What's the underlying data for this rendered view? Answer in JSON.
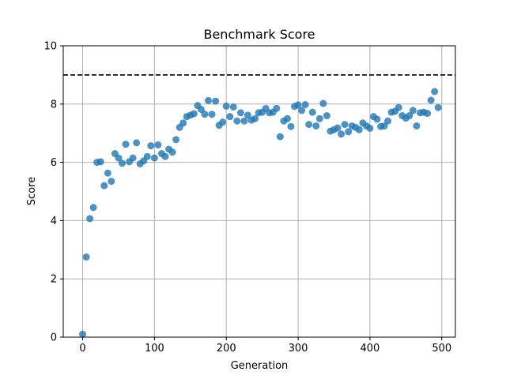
{
  "chart_data": {
    "type": "scatter",
    "title": "Benchmark Score",
    "xlabel": "Generation",
    "ylabel": "Score",
    "xlim": [
      -27,
      519
    ],
    "ylim": [
      0,
      10
    ],
    "xticks": [
      0,
      100,
      200,
      300,
      400,
      500
    ],
    "yticks": [
      0,
      2,
      4,
      6,
      8,
      10
    ],
    "grid": true,
    "reference_line": {
      "y": 9,
      "style": "dashed",
      "color": "#000000"
    },
    "point_color": "#1f77b4",
    "points": [
      [
        0,
        0.1
      ],
      [
        5,
        2.75
      ],
      [
        10,
        4.07
      ],
      [
        15,
        4.45
      ],
      [
        20,
        6.0
      ],
      [
        25,
        6.02
      ],
      [
        30,
        5.2
      ],
      [
        35,
        5.63
      ],
      [
        40,
        5.35
      ],
      [
        45,
        6.3
      ],
      [
        50,
        6.15
      ],
      [
        55,
        5.97
      ],
      [
        60,
        6.62
      ],
      [
        65,
        6.02
      ],
      [
        70,
        6.15
      ],
      [
        75,
        6.67
      ],
      [
        80,
        5.95
      ],
      [
        85,
        6.05
      ],
      [
        90,
        6.2
      ],
      [
        95,
        6.57
      ],
      [
        100,
        6.15
      ],
      [
        105,
        6.6
      ],
      [
        110,
        6.3
      ],
      [
        115,
        6.2
      ],
      [
        120,
        6.45
      ],
      [
        125,
        6.35
      ],
      [
        130,
        6.78
      ],
      [
        135,
        7.2
      ],
      [
        140,
        7.35
      ],
      [
        145,
        7.57
      ],
      [
        150,
        7.62
      ],
      [
        155,
        7.67
      ],
      [
        160,
        7.95
      ],
      [
        165,
        7.82
      ],
      [
        170,
        7.65
      ],
      [
        175,
        8.12
      ],
      [
        180,
        7.65
      ],
      [
        185,
        8.1
      ],
      [
        190,
        7.27
      ],
      [
        195,
        7.38
      ],
      [
        200,
        7.93
      ],
      [
        205,
        7.57
      ],
      [
        210,
        7.9
      ],
      [
        215,
        7.42
      ],
      [
        220,
        7.7
      ],
      [
        225,
        7.42
      ],
      [
        230,
        7.62
      ],
      [
        235,
        7.45
      ],
      [
        240,
        7.5
      ],
      [
        245,
        7.7
      ],
      [
        250,
        7.72
      ],
      [
        255,
        7.85
      ],
      [
        260,
        7.7
      ],
      [
        265,
        7.72
      ],
      [
        270,
        7.85
      ],
      [
        275,
        6.88
      ],
      [
        280,
        7.42
      ],
      [
        285,
        7.5
      ],
      [
        290,
        7.23
      ],
      [
        295,
        7.92
      ],
      [
        300,
        7.97
      ],
      [
        305,
        7.78
      ],
      [
        310,
        7.98
      ],
      [
        315,
        7.3
      ],
      [
        320,
        7.72
      ],
      [
        325,
        7.25
      ],
      [
        330,
        7.5
      ],
      [
        335,
        8.02
      ],
      [
        340,
        7.6
      ],
      [
        345,
        7.07
      ],
      [
        350,
        7.12
      ],
      [
        355,
        7.18
      ],
      [
        360,
        6.97
      ],
      [
        365,
        7.3
      ],
      [
        370,
        7.05
      ],
      [
        375,
        7.25
      ],
      [
        380,
        7.2
      ],
      [
        385,
        7.12
      ],
      [
        390,
        7.35
      ],
      [
        395,
        7.25
      ],
      [
        400,
        7.17
      ],
      [
        405,
        7.57
      ],
      [
        410,
        7.48
      ],
      [
        415,
        7.23
      ],
      [
        420,
        7.25
      ],
      [
        425,
        7.42
      ],
      [
        430,
        7.72
      ],
      [
        435,
        7.75
      ],
      [
        440,
        7.88
      ],
      [
        445,
        7.6
      ],
      [
        450,
        7.52
      ],
      [
        455,
        7.6
      ],
      [
        460,
        7.78
      ],
      [
        465,
        7.25
      ],
      [
        470,
        7.7
      ],
      [
        475,
        7.72
      ],
      [
        480,
        7.68
      ],
      [
        485,
        8.13
      ],
      [
        490,
        8.43
      ],
      [
        495,
        7.88
      ]
    ]
  }
}
